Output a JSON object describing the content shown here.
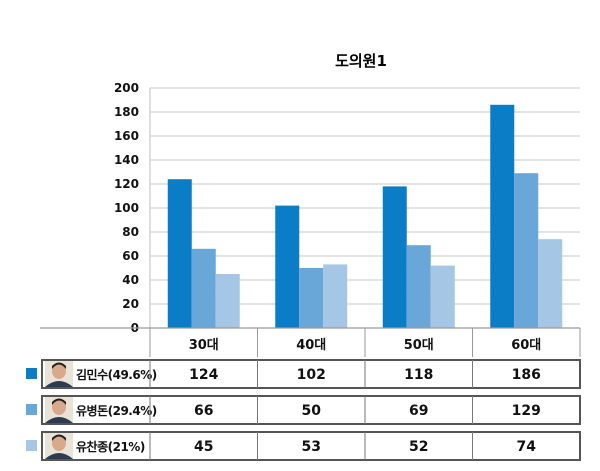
{
  "chart_data": {
    "type": "bar",
    "title": "도의원1",
    "categories": [
      "30대",
      "40대",
      "50대",
      "60대"
    ],
    "ylim": [
      0,
      200
    ],
    "yticks": [
      0,
      20,
      40,
      60,
      80,
      100,
      120,
      140,
      160,
      180,
      200
    ],
    "grid": true,
    "xlabel": "",
    "ylabel": "",
    "series": [
      {
        "name": "김민수(49.6%)",
        "color": "#0b7dc6",
        "values": [
          124,
          102,
          118,
          186
        ]
      },
      {
        "name": "유병돈(29.4%)",
        "color": "#6aa7d9",
        "values": [
          66,
          50,
          69,
          129
        ]
      },
      {
        "name": "유찬종(21%)",
        "color": "#a5c6e4",
        "values": [
          45,
          53,
          52,
          74
        ]
      }
    ],
    "legend_placement": "table-below"
  },
  "icons": [
    "person-photo-icon"
  ]
}
